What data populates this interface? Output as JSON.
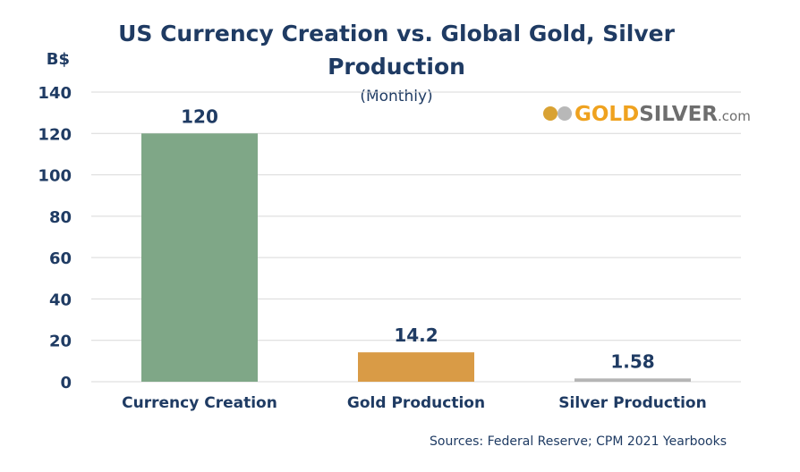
{
  "chart_data": {
    "type": "bar",
    "title": "US Currency Creation vs. Global Gold, Silver Production",
    "subtitle": "(Monthly)",
    "ylabel": "B$",
    "xlabel": "",
    "categories": [
      "Currency Creation",
      "Gold Production",
      "Silver Production"
    ],
    "values": [
      120,
      14.2,
      1.58
    ],
    "data_labels": [
      "120",
      "14.2",
      "1.58"
    ],
    "bar_colors": [
      "#7fa787",
      "#d99b46",
      "#b5b5b5"
    ],
    "ylim": [
      0,
      140
    ],
    "yticks": [
      0,
      20,
      40,
      60,
      80,
      100,
      120,
      140
    ],
    "grid": true,
    "legend": "none",
    "text_color": "#1f3b63"
  },
  "logo": {
    "text_gold": "GOLD",
    "text_silver": "SILVER",
    "text_suffix": ".com"
  },
  "source": "Sources: Federal Reserve; CPM 2021 Yearbooks"
}
